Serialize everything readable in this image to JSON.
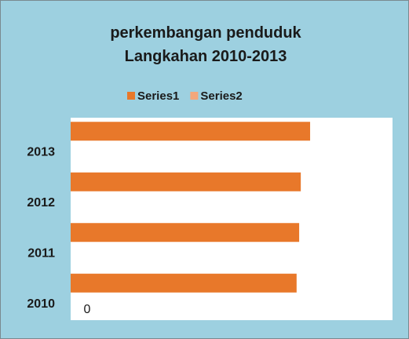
{
  "chart_data": {
    "type": "hbar",
    "title": "perkembangan penduduk Langkahan 2010-2013",
    "categories": [
      "2010",
      "2011",
      "2012",
      "2013"
    ],
    "series": [
      {
        "name": "Series1",
        "color": "#e8782a",
        "values": [
          70.2,
          71,
          71.5,
          74.4
        ]
      },
      {
        "name": "Series2",
        "color": "#f4a77a",
        "values": [
          null,
          null,
          null,
          null
        ]
      }
    ],
    "xlim": [
      0,
      100
    ],
    "xticks": [
      0
    ],
    "legend": "top"
  }
}
